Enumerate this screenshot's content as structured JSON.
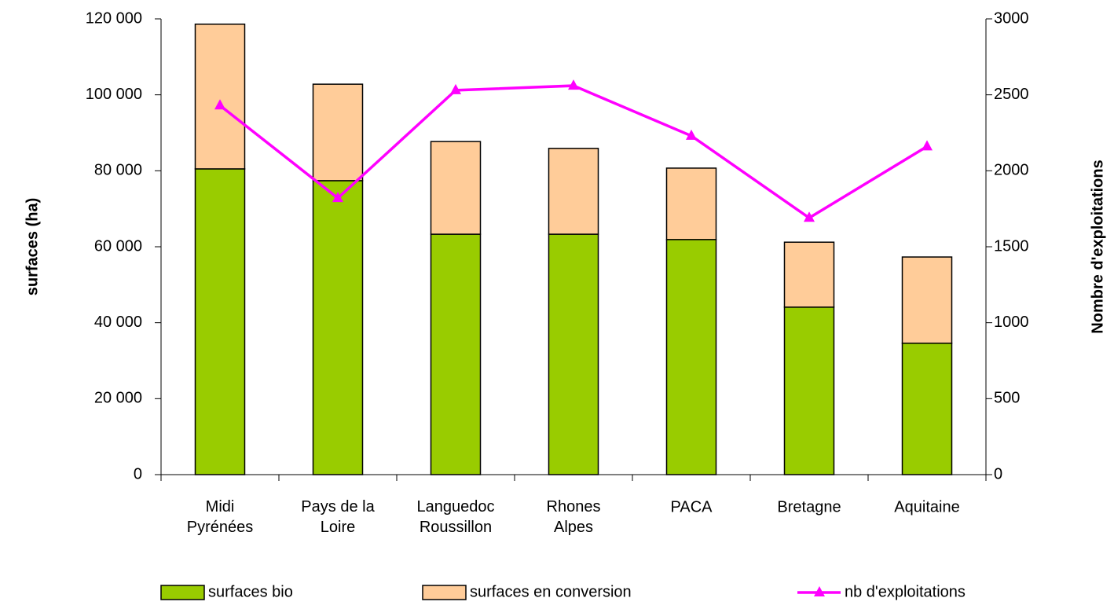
{
  "chart_data": {
    "type": "bar",
    "stacked": true,
    "categories": [
      "Midi\nPyrénées",
      "Pays de la\nLoire",
      "Languedoc\nRoussillon",
      "Rhones\nAlpes",
      "PACA",
      "Bretagne",
      "Aquitaine"
    ],
    "ylabel": "surfaces  (ha)",
    "y2label": "Nombre d'exploitations",
    "ylim": [
      0,
      120000
    ],
    "yticks": [
      0,
      {
        "value": 20000,
        "label": "20 000"
      },
      {
        "value": 40000,
        "label": "40 000"
      },
      {
        "value": 60000,
        "label": "60 000"
      },
      {
        "value": 80000,
        "label": "80 000"
      },
      {
        "value": 100000,
        "label": "100 000"
      },
      {
        "value": 120000,
        "label": "120 000"
      }
    ],
    "y2lim": [
      0,
      3000
    ],
    "y2ticks": [
      0,
      500,
      1000,
      1500,
      2000,
      2500,
      3000
    ],
    "series": [
      {
        "name": "surfaces bio",
        "type": "bar",
        "color": "#99cc00",
        "values": [
          80500,
          77400,
          63300,
          63300,
          61900,
          44100,
          34600
        ]
      },
      {
        "name": "surfaces en conversion",
        "type": "bar",
        "color": "#ffcc99",
        "values": [
          38100,
          25400,
          24400,
          22600,
          18800,
          17100,
          22700
        ]
      },
      {
        "name": "nb d'exploitations",
        "type": "line",
        "axis": "y2",
        "color": "#ff00ff",
        "values": [
          2430,
          1820,
          2530,
          2560,
          2230,
          1690,
          2160
        ]
      }
    ]
  }
}
